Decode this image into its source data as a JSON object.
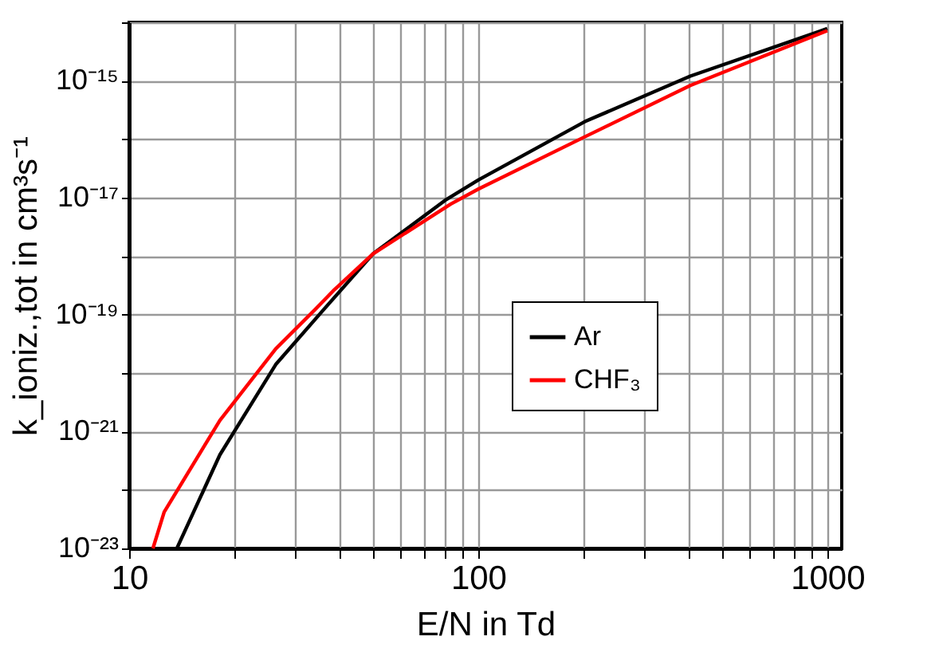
{
  "chart_data": {
    "type": "line",
    "xlabel": "E/N in Td",
    "ylabel": "k_ioniz.,tot in cm³s⁻¹",
    "log": "xy",
    "xlim": [
      10,
      1100
    ],
    "ylim": [
      1e-23,
      1e-14
    ],
    "xticks": [
      10,
      {
        "value": 20,
        "label": null
      },
      {
        "value": 30,
        "label": null
      },
      {
        "value": 40,
        "label": null
      },
      {
        "value": 50,
        "label": null
      },
      {
        "value": 60,
        "label": null
      },
      {
        "value": 70,
        "label": null
      },
      {
        "value": 80,
        "label": null
      },
      {
        "value": 90,
        "label": null
      },
      100,
      {
        "value": 200,
        "label": null
      },
      {
        "value": 300,
        "label": null
      },
      {
        "value": 400,
        "label": null
      },
      {
        "value": 500,
        "label": null
      },
      {
        "value": 600,
        "label": null
      },
      {
        "value": 700,
        "label": null
      },
      {
        "value": 800,
        "label": null
      },
      {
        "value": 900,
        "label": null
      },
      1000
    ],
    "yticks": [
      {
        "value": 1e-23,
        "label": "10⁻²³"
      },
      {
        "value": 1e-22,
        "label": null
      },
      {
        "value": 1e-21,
        "label": "10⁻²¹"
      },
      {
        "value": 1e-20,
        "label": null
      },
      {
        "value": 1e-19,
        "label": "10⁻¹⁹"
      },
      {
        "value": 1e-18,
        "label": null
      },
      {
        "value": 1e-17,
        "label": "10⁻¹⁷"
      },
      {
        "value": 1e-16,
        "label": null
      },
      {
        "value": 1e-15,
        "label": "10⁻¹⁵"
      },
      {
        "value": 1e-14,
        "label": null
      }
    ],
    "grid": true,
    "legend": "right",
    "line_style": "solid",
    "marker": "none",
    "series": [
      {
        "name": "Ar",
        "color": "#000000",
        "x": [
          13.7,
          18.2,
          26.3,
          36,
          50,
          81,
          100,
          202,
          405,
          1000
        ],
        "values": [
          1e-23,
          4e-22,
          1.4e-20,
          1.2e-19,
          1.1e-18,
          9.3e-18,
          2e-17,
          2e-16,
          1.2e-15,
          7.8e-15
        ]
      },
      {
        "name": "CHF₃",
        "color": "#ff0000",
        "x": [
          11.7,
          12.6,
          18.2,
          26.3,
          34,
          38.8,
          50,
          83.5,
          100,
          202,
          405,
          1000
        ],
        "values": [
          1e-23,
          4.2e-23,
          1.55e-21,
          2.6e-20,
          1.2e-19,
          2.7e-19,
          1.1e-18,
          7.8e-18,
          1.4e-17,
          1.1e-16,
          8.3e-16,
          7.2e-15
        ]
      }
    ]
  }
}
